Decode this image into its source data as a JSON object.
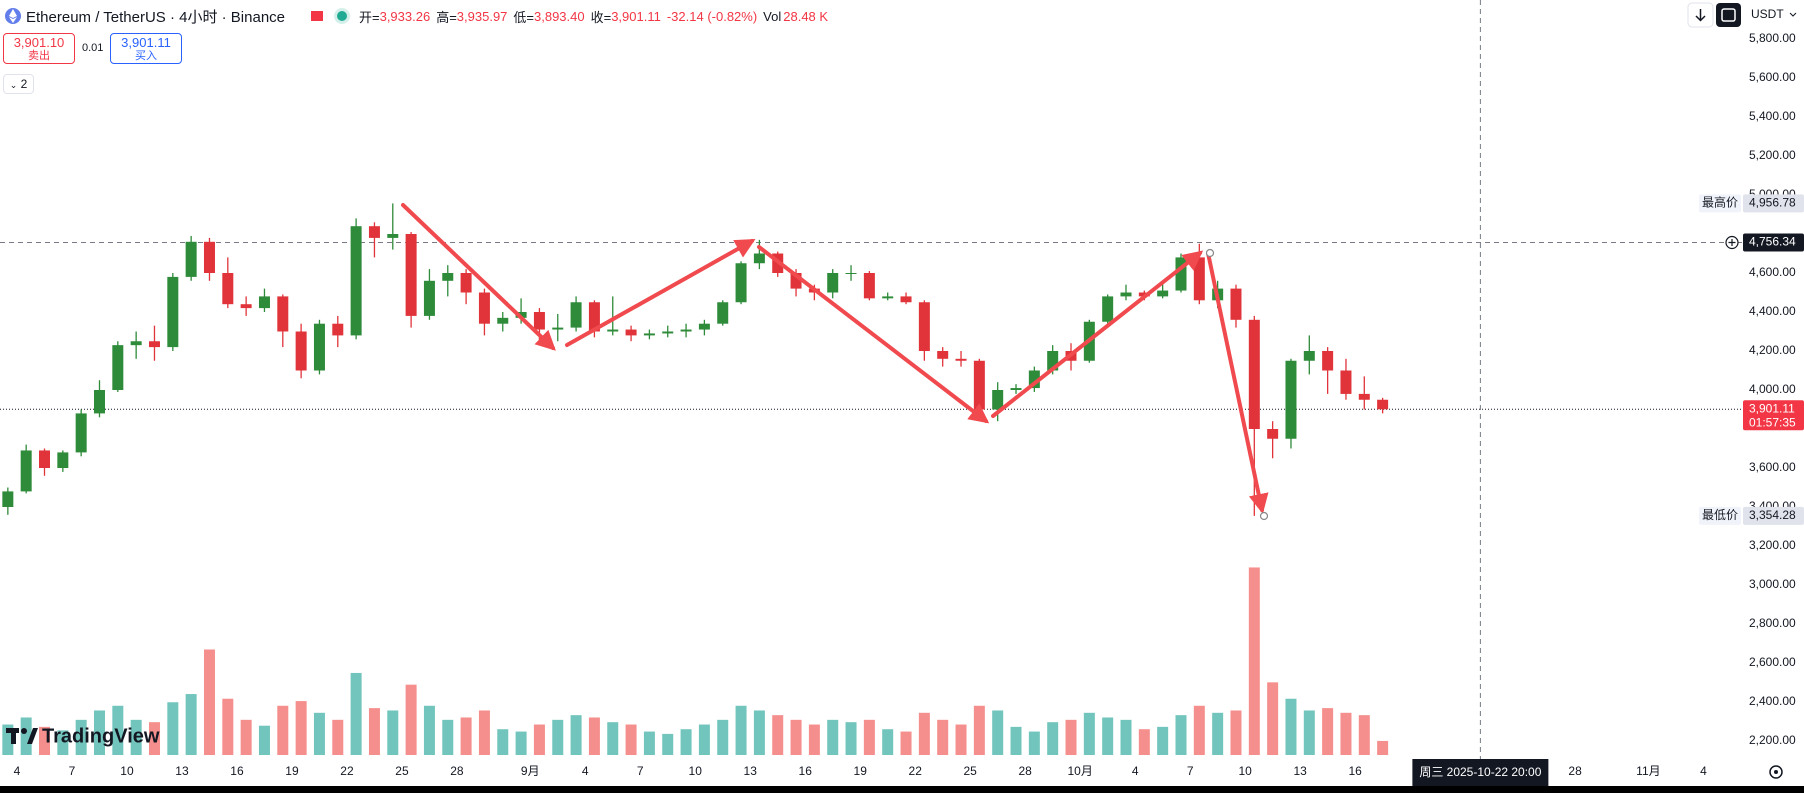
{
  "header": {
    "symbol": "Ethereum / TetherUS · 4小时 · Binance",
    "ohlc": [
      {
        "label": "开=",
        "value": "3,933.26"
      },
      {
        "label": "高=",
        "value": "3,935.97"
      },
      {
        "label": "低=",
        "value": "3,893.40"
      },
      {
        "label": "收=",
        "value": "3,901.11"
      }
    ],
    "change": "-32.14 (-0.82%)",
    "volume_label": "Vol",
    "volume": "28.48 K",
    "currency": "USDT"
  },
  "trade": {
    "sell_price": "3,901.10",
    "sell_label": "卖出",
    "spread": "0.01",
    "buy_price": "3,901.11",
    "buy_label": "买入",
    "layers": "2"
  },
  "watermark": "TradingView",
  "chart_data": {
    "type": "candlestick",
    "x": [
      "2025-08-03",
      "2025-08-04",
      "2025-08-05",
      "2025-08-06",
      "2025-08-07",
      "2025-08-08",
      "2025-08-09",
      "2025-08-10",
      "2025-08-11",
      "2025-08-12",
      "2025-08-13",
      "2025-08-14",
      "2025-08-15",
      "2025-08-16",
      "2025-08-17",
      "2025-08-18",
      "2025-08-19",
      "2025-08-20",
      "2025-08-21",
      "2025-08-22",
      "2025-08-23",
      "2025-08-24",
      "2025-08-25",
      "2025-08-26",
      "2025-08-27",
      "2025-08-28",
      "2025-08-29",
      "2025-08-30",
      "2025-08-31",
      "2025-09-01",
      "2025-09-02",
      "2025-09-03",
      "2025-09-04",
      "2025-09-05",
      "2025-09-06",
      "2025-09-07",
      "2025-09-08",
      "2025-09-09",
      "2025-09-10",
      "2025-09-11",
      "2025-09-12",
      "2025-09-13",
      "2025-09-14",
      "2025-09-15",
      "2025-09-16",
      "2025-09-17",
      "2025-09-18",
      "2025-09-19",
      "2025-09-20",
      "2025-09-21",
      "2025-09-22",
      "2025-09-23",
      "2025-09-24",
      "2025-09-25",
      "2025-09-26",
      "2025-09-27",
      "2025-09-28",
      "2025-09-29",
      "2025-09-30",
      "2025-10-01",
      "2025-10-02",
      "2025-10-03",
      "2025-10-04",
      "2025-10-05",
      "2025-10-06",
      "2025-10-07",
      "2025-10-08",
      "2025-10-09",
      "2025-10-10",
      "2025-10-11",
      "2025-10-12",
      "2025-10-13",
      "2025-10-14",
      "2025-10-15",
      "2025-10-16",
      "2025-10-17"
    ],
    "open": [
      3400,
      3480,
      3690,
      3600,
      3680,
      3880,
      4000,
      4230,
      4250,
      4220,
      4580,
      4760,
      4600,
      4440,
      4420,
      4480,
      4300,
      4100,
      4340,
      4280,
      4840,
      4780,
      4800,
      4380,
      4560,
      4600,
      4500,
      4340,
      4370,
      4400,
      4310,
      4320,
      4450,
      4300,
      4310,
      4280,
      4290,
      4300,
      4310,
      4340,
      4450,
      4650,
      4700,
      4600,
      4520,
      4500,
      4600,
      4600,
      4470,
      4480,
      4450,
      4200,
      4160,
      4150,
      3900,
      4000,
      4010,
      4100,
      4200,
      4150,
      4350,
      4480,
      4500,
      4480,
      4510,
      4680,
      4460,
      4520,
      4360,
      3800,
      3750,
      4150,
      4200,
      4100,
      3980,
      3950
    ],
    "high": [
      3500,
      3720,
      3700,
      3690,
      3900,
      4050,
      4250,
      4300,
      4330,
      4600,
      4790,
      4780,
      4680,
      4480,
      4520,
      4490,
      4340,
      4360,
      4380,
      4880,
      4860,
      4956.78,
      4810,
      4620,
      4640,
      4620,
      4520,
      4400,
      4470,
      4420,
      4390,
      4480,
      4460,
      4480,
      4330,
      4310,
      4330,
      4340,
      4360,
      4460,
      4660,
      4770,
      4710,
      4620,
      4540,
      4620,
      4640,
      4610,
      4500,
      4500,
      4460,
      4220,
      4200,
      4160,
      4040,
      4030,
      4120,
      4230,
      4240,
      4360,
      4490,
      4540,
      4510,
      4550,
      4700,
      4750,
      4560,
      4540,
      4380,
      3840,
      4160,
      4280,
      4220,
      4160,
      4070,
      3960
    ],
    "low": [
      3360,
      3470,
      3560,
      3580,
      3660,
      3860,
      3990,
      4160,
      4150,
      4200,
      4560,
      4560,
      4420,
      4380,
      4400,
      4220,
      4060,
      4080,
      4220,
      4260,
      4680,
      4720,
      4320,
      4360,
      4480,
      4440,
      4280,
      4300,
      4340,
      4240,
      4250,
      4300,
      4270,
      4280,
      4250,
      4260,
      4270,
      4270,
      4280,
      4330,
      4440,
      4620,
      4580,
      4480,
      4460,
      4470,
      4560,
      4460,
      4460,
      4440,
      4150,
      4120,
      4120,
      3860,
      3840,
      3980,
      3990,
      4080,
      4100,
      4140,
      4340,
      4460,
      4460,
      4470,
      4500,
      4440,
      4420,
      4320,
      3354.28,
      3650,
      3700,
      4080,
      3980,
      3950,
      3900,
      3880
    ],
    "close": [
      3480,
      3690,
      3600,
      3680,
      3880,
      4000,
      4230,
      4250,
      4220,
      4580,
      4760,
      4600,
      4440,
      4420,
      4480,
      4300,
      4100,
      4340,
      4280,
      4840,
      4780,
      4800,
      4380,
      4560,
      4600,
      4500,
      4340,
      4370,
      4400,
      4310,
      4320,
      4450,
      4300,
      4310,
      4280,
      4290,
      4300,
      4310,
      4340,
      4450,
      4650,
      4700,
      4600,
      4520,
      4500,
      4600,
      4600,
      4470,
      4480,
      4450,
      4200,
      4160,
      4150,
      3900,
      4000,
      4010,
      4100,
      4200,
      4150,
      4350,
      4480,
      4500,
      4480,
      4510,
      4680,
      4460,
      4520,
      4360,
      3800,
      3750,
      4150,
      4200,
      4100,
      3980,
      3950,
      3901.11
    ],
    "volume": [
      260,
      320,
      240,
      210,
      300,
      380,
      420,
      300,
      280,
      450,
      520,
      900,
      480,
      300,
      250,
      420,
      460,
      360,
      300,
      700,
      400,
      380,
      600,
      420,
      300,
      320,
      380,
      220,
      200,
      260,
      300,
      340,
      320,
      280,
      260,
      200,
      180,
      220,
      260,
      300,
      420,
      380,
      340,
      300,
      260,
      300,
      280,
      300,
      220,
      200,
      360,
      300,
      260,
      420,
      380,
      240,
      200,
      280,
      300,
      360,
      320,
      300,
      220,
      240,
      340,
      420,
      360,
      380,
      1600,
      620,
      480,
      380,
      400,
      360,
      340,
      120
    ],
    "volume_ylim": [
      0,
      1800
    ],
    "colors": {
      "up": "#2e8b3a",
      "down": "#e0343a",
      "volume_up": "#26a69a",
      "volume_down": "#ef5350"
    },
    "ylim": [
      2200,
      5800
    ],
    "yticks": [
      {
        "value": 5800,
        "label": "5,800.00"
      },
      {
        "value": 5600,
        "label": "5,600.00"
      },
      {
        "value": 5400,
        "label": "5,400.00"
      },
      {
        "value": 5200,
        "label": "5,200.00"
      },
      {
        "value": 5000,
        "label": "5,000.00"
      },
      {
        "value": 4600,
        "label": "4,600.00"
      },
      {
        "value": 4400,
        "label": "4,400.00"
      },
      {
        "value": 4200,
        "label": "4,200.00"
      },
      {
        "value": 4000,
        "label": "4,000.00"
      },
      {
        "value": 3600,
        "label": "3,600.00"
      },
      {
        "value": 3400,
        "label": "3,400.00"
      },
      {
        "value": 3200,
        "label": "3,200.00"
      },
      {
        "value": 3000,
        "label": "3,000.00"
      },
      {
        "value": 2800,
        "label": "2,800.00"
      },
      {
        "value": 2600,
        "label": "2,600.00"
      },
      {
        "value": 2400,
        "label": "2,400.00"
      },
      {
        "value": 2200,
        "label": "2,200.00"
      }
    ],
    "xlim": [
      "2025-08-03T01:44",
      "2025-11-06T03:50"
    ],
    "xticks": [
      {
        "value": "2025-08-04",
        "label": "4"
      },
      {
        "value": "2025-08-07",
        "label": "7"
      },
      {
        "value": "2025-08-10",
        "label": "10"
      },
      {
        "value": "2025-08-13",
        "label": "13"
      },
      {
        "value": "2025-08-16",
        "label": "16"
      },
      {
        "value": "2025-08-19",
        "label": "19"
      },
      {
        "value": "2025-08-22",
        "label": "22"
      },
      {
        "value": "2025-08-25",
        "label": "25"
      },
      {
        "value": "2025-08-28",
        "label": "28"
      },
      {
        "value": "2025-09-01",
        "label": "9月"
      },
      {
        "value": "2025-09-04",
        "label": "4"
      },
      {
        "value": "2025-09-07",
        "label": "7"
      },
      {
        "value": "2025-09-10",
        "label": "10"
      },
      {
        "value": "2025-09-13",
        "label": "13"
      },
      {
        "value": "2025-09-16",
        "label": "16"
      },
      {
        "value": "2025-09-19",
        "label": "19"
      },
      {
        "value": "2025-09-22",
        "label": "22"
      },
      {
        "value": "2025-09-25",
        "label": "25"
      },
      {
        "value": "2025-09-28",
        "label": "28"
      },
      {
        "value": "2025-10-01",
        "label": "10月"
      },
      {
        "value": "2025-10-04",
        "label": "4"
      },
      {
        "value": "2025-10-07",
        "label": "7"
      },
      {
        "value": "2025-10-10",
        "label": "10"
      },
      {
        "value": "2025-10-13",
        "label": "13"
      },
      {
        "value": "2025-10-16",
        "label": "16"
      },
      {
        "value": "2025-10-28",
        "label": "28"
      },
      {
        "value": "2025-11-01",
        "label": "11月"
      },
      {
        "value": "2025-11-04",
        "label": "4"
      }
    ],
    "price_labels": [
      {
        "name": "最高价",
        "value": 4956.78,
        "label": "4,956.78",
        "color": "#e0e3eb",
        "text_color": "#131722"
      },
      {
        "value": 4756.34,
        "label": "4,756.34",
        "color": "#131722",
        "text_color": "#ffffff",
        "line": "dashed"
      },
      {
        "value": 3901.11,
        "label": "3,901.11",
        "countdown": "01:57:35",
        "color": "#f23645",
        "text_color": "#ffffff",
        "line": "dotted"
      },
      {
        "name": "最低价",
        "value": 3354.28,
        "label": "3,354.28",
        "color": "#e0e3eb",
        "text_color": "#131722"
      }
    ],
    "crosshair": {
      "x": "2025-10-22T20:00",
      "label": "周三 2025-10-22 20:00"
    }
  }
}
